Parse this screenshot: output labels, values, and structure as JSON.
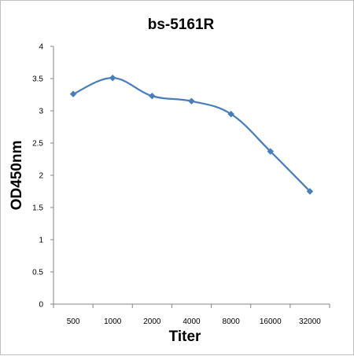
{
  "chart_data": {
    "type": "line",
    "title": "bs-5161R",
    "xlabel": "Titer",
    "ylabel": "OD450nm",
    "categories": [
      "500",
      "1000",
      "2000",
      "4000",
      "8000",
      "16000",
      "32000"
    ],
    "series": [
      {
        "values": [
          3.26,
          3.51,
          3.23,
          3.15,
          2.95,
          2.37,
          1.75
        ],
        "color": "#4a7ebb"
      }
    ],
    "ylim": [
      0,
      4
    ],
    "yticks": [
      "0",
      "0.5",
      "1",
      "1.5",
      "2",
      "2.5",
      "3",
      "3.5",
      "4"
    ],
    "grid": false,
    "legend": "none"
  }
}
